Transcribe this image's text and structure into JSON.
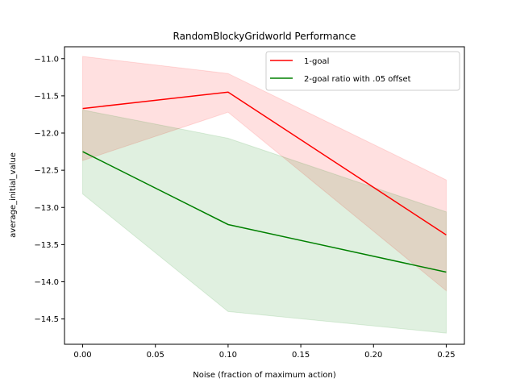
{
  "chart_data": {
    "type": "line",
    "title": "RandomBlockyGridworld Performance",
    "xlabel": "Noise (fraction of maximum action)",
    "ylabel": "average_initial_value",
    "x": [
      0.0,
      0.1,
      0.25
    ],
    "xlim": [
      -0.0125,
      0.2625
    ],
    "ylim": [
      -14.84,
      -10.84
    ],
    "xticks": [
      0.0,
      0.05,
      0.1,
      0.15,
      0.2,
      0.25
    ],
    "xtick_labels": [
      "0.00",
      "0.05",
      "0.10",
      "0.15",
      "0.20",
      "0.25"
    ],
    "yticks": [
      -11.0,
      -11.5,
      -12.0,
      -12.5,
      -13.0,
      -13.5,
      -14.0,
      -14.5
    ],
    "ytick_labels": [
      "−11.0",
      "−11.5",
      "−12.0",
      "−12.5",
      "−13.0",
      "−13.5",
      "−14.0",
      "−14.5"
    ],
    "grid": false,
    "legend_position": "top-right",
    "series": [
      {
        "name": "1-goal",
        "color": "#ff0000",
        "values": [
          -11.67,
          -11.45,
          -13.37
        ],
        "lower": [
          -12.37,
          -11.72,
          -14.12
        ],
        "upper": [
          -10.97,
          -11.2,
          -12.63
        ]
      },
      {
        "name": "2-goal ratio with .05 offset",
        "color": "#008000",
        "values": [
          -12.25,
          -13.23,
          -13.87
        ],
        "lower": [
          -12.82,
          -14.4,
          -14.69
        ],
        "upper": [
          -11.69,
          -12.07,
          -13.06
        ]
      }
    ]
  }
}
